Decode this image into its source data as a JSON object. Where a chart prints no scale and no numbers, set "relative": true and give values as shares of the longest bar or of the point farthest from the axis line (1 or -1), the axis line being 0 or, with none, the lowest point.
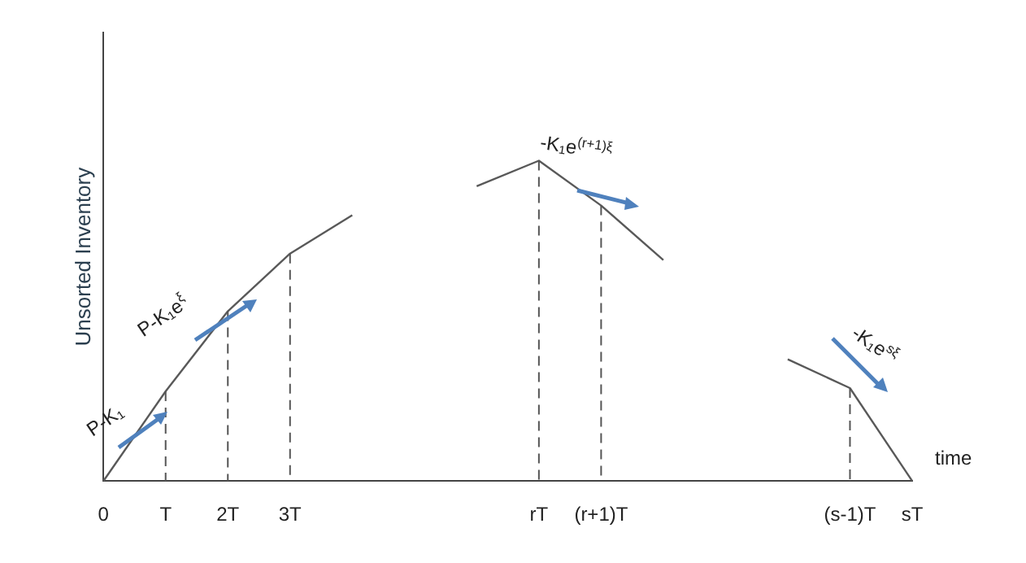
{
  "chart_data": {
    "type": "line",
    "relative": true,
    "ylabel": "Unsorted Inventory",
    "xlabel": "time",
    "categories": [
      "0",
      "T",
      "2T",
      "3T",
      null,
      null,
      null,
      "rT",
      "(r+1)T",
      null,
      null,
      null,
      "(s-1)T",
      "sT"
    ],
    "series": [
      {
        "color": "#595959",
        "values": [
          0,
          0.28,
          0.53,
          0.71,
          0.83,
          null,
          0.92,
          1,
          0.86,
          0.69,
          null,
          0.38,
          0.29,
          0
        ]
      }
    ],
    "annotations": [
      "P-K₁",
      "P-K₁e$^{ξ}$",
      "-K₁e$^{(r+1)ξ}$",
      "-K₁e$^{sξ}$"
    ],
    "ref_lines": [
      {
        "axis": "x",
        "value": "T",
        "line_style": "dashed"
      },
      {
        "axis": "x",
        "value": "2T",
        "line_style": "dashed"
      },
      {
        "axis": "x",
        "value": "3T",
        "line_style": "dashed"
      },
      {
        "axis": "x",
        "value": "rT",
        "line_style": "dashed"
      },
      {
        "axis": "x",
        "value": "(r+1)T",
        "line_style": "dashed"
      },
      {
        "axis": "x",
        "value": "(s-1)T",
        "line_style": "dashed"
      }
    ],
    "grid": false,
    "legend": false,
    "marker": "none",
    "line_style": "solid"
  }
}
